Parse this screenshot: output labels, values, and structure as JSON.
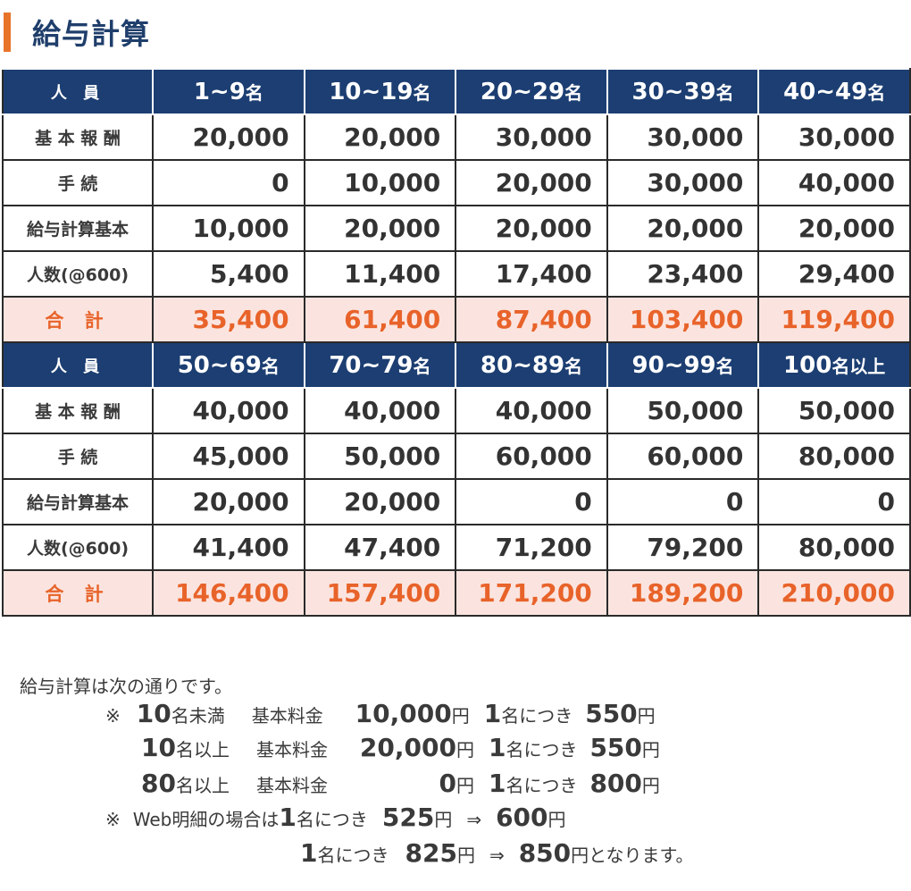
{
  "title": "給与計算",
  "tables": [
    {
      "header_label": "人 員",
      "headers": [
        {
          "n": "1~9",
          "s": "名"
        },
        {
          "n": "10~19",
          "s": "名"
        },
        {
          "n": "20~29",
          "s": "名"
        },
        {
          "n": "30~39",
          "s": "名"
        },
        {
          "n": "40~49",
          "s": "名"
        }
      ],
      "rows": [
        {
          "label": "基 本 報 酬",
          "values": [
            "20,000",
            "20,000",
            "30,000",
            "30,000",
            "30,000"
          ]
        },
        {
          "label": "手 続",
          "values": [
            "0",
            "10,000",
            "20,000",
            "30,000",
            "40,000"
          ]
        },
        {
          "label": "給与計算基本",
          "values": [
            "10,000",
            "20,000",
            "20,000",
            "20,000",
            "20,000"
          ]
        },
        {
          "label": "人数(@600)",
          "values": [
            "5,400",
            "11,400",
            "17,400",
            "23,400",
            "29,400"
          ]
        }
      ],
      "total": {
        "label": "合 計",
        "values": [
          "35,400",
          "61,400",
          "87,400",
          "103,400",
          "119,400"
        ]
      }
    },
    {
      "header_label": "人 員",
      "headers": [
        {
          "n": "50~69",
          "s": "名"
        },
        {
          "n": "70~79",
          "s": "名"
        },
        {
          "n": "80~89",
          "s": "名"
        },
        {
          "n": "90~99",
          "s": "名"
        },
        {
          "n": "100",
          "s": "名以上"
        }
      ],
      "rows": [
        {
          "label": "基 本 報 酬",
          "values": [
            "40,000",
            "40,000",
            "40,000",
            "50,000",
            "50,000"
          ]
        },
        {
          "label": "手 続",
          "values": [
            "45,000",
            "50,000",
            "60,000",
            "60,000",
            "80,000"
          ]
        },
        {
          "label": "給与計算基本",
          "values": [
            "20,000",
            "20,000",
            "0",
            "0",
            "0"
          ]
        },
        {
          "label": "人数(@600)",
          "values": [
            "41,400",
            "47,400",
            "71,200",
            "79,200",
            "80,000"
          ]
        }
      ],
      "total": {
        "label": "合 計",
        "values": [
          "146,400",
          "157,400",
          "171,200",
          "189,200",
          "210,000"
        ]
      }
    }
  ],
  "notes": {
    "intro": "給与計算は次の通りです。",
    "mark": "※",
    "tiers": [
      {
        "count": "10",
        "cond": "名未満",
        "base_label": "基本料金",
        "base_fee": "10,000",
        "yen": "円",
        "one": "1",
        "per": "名につき",
        "rate": "550"
      },
      {
        "count": "10",
        "cond": "名以上",
        "base_label": "基本料金",
        "base_fee": "20,000",
        "yen": "円",
        "one": "1",
        "per": "名につき",
        "rate": "550"
      },
      {
        "count": "80",
        "cond": "名以上",
        "base_label": "基本料金",
        "base_fee": "0",
        "yen": "円",
        "one": "1",
        "per": "名につき",
        "rate": "800"
      }
    ],
    "web": {
      "lead": "Web明細の場合は",
      "one": "1",
      "per": "名につき",
      "from1": "525",
      "to1": "600",
      "from2": "825",
      "to2": "850",
      "yen": "円",
      "arrow": "⇒",
      "ending": "円となります。"
    }
  }
}
